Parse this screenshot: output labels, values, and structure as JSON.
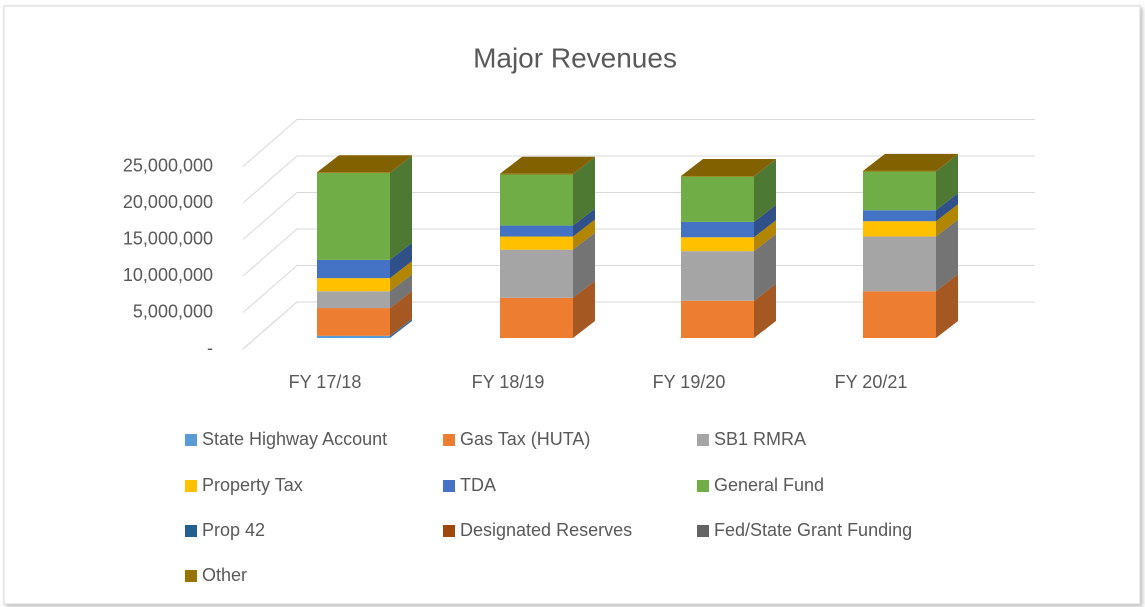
{
  "chart_data": {
    "type": "bar3d_stacked",
    "title": "Major Revenues",
    "categories": [
      "FY 17/18",
      "FY 18/19",
      "FY 19/20",
      "FY 20/21"
    ],
    "ylim": [
      0,
      25000000
    ],
    "yticks": [
      {
        "value": 0,
        "label": "-"
      },
      {
        "value": 5000000,
        "label": "5,000,000"
      },
      {
        "value": 10000000,
        "label": "10,000,000"
      },
      {
        "value": 15000000,
        "label": "15,000,000"
      },
      {
        "value": 20000000,
        "label": "20,000,000"
      },
      {
        "value": 25000000,
        "label": "25,000,000"
      }
    ],
    "grid": true,
    "legend": "bottom",
    "series": [
      {
        "name": "State Highway Account",
        "color": "#5b9bd5",
        "values": [
          300000,
          0,
          0,
          0
        ]
      },
      {
        "name": "Gas Tax (HUTA)",
        "color": "#ed7d31",
        "values": [
          3800000,
          5500000,
          5100000,
          6400000
        ]
      },
      {
        "name": "SB1 RMRA",
        "color": "#a5a5a5",
        "values": [
          2300000,
          6600000,
          6800000,
          7500000
        ]
      },
      {
        "name": "Property Tax",
        "color": "#ffc000",
        "values": [
          1800000,
          1800000,
          1900000,
          2100000
        ]
      },
      {
        "name": "TDA",
        "color": "#4472c4",
        "values": [
          2500000,
          1500000,
          2100000,
          1500000
        ]
      },
      {
        "name": "General Fund",
        "color": "#70ad47",
        "values": [
          11900000,
          7000000,
          6200000,
          5300000
        ]
      },
      {
        "name": "Prop 42",
        "color": "#255e91",
        "values": [
          0,
          0,
          0,
          0
        ]
      },
      {
        "name": "Designated Reserves",
        "color": "#9e480e",
        "values": [
          0,
          0,
          0,
          0
        ]
      },
      {
        "name": "Fed/State Grant Funding",
        "color": "#636363",
        "values": [
          0,
          0,
          0,
          0
        ]
      },
      {
        "name": "Other",
        "color": "#997300",
        "values": [
          100000,
          100000,
          100000,
          100000
        ]
      }
    ]
  }
}
